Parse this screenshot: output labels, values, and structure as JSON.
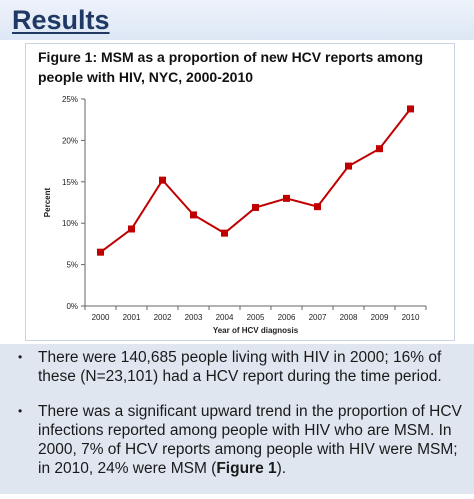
{
  "slide": {
    "title": "Results"
  },
  "figure": {
    "caption": "Figure 1: MSM as a proportion of new HCV reports among people with HIV, NYC, 2000-2010"
  },
  "bullets": [
    {
      "marker": "•",
      "text": "There were 140,685 people living with HIV in 2000; 16% of these (N=23,101) had a HCV report during the time period."
    },
    {
      "marker": "•",
      "text_before": "There was a significant upward trend in the proportion of HCV infections reported among people with HIV who are MSM.  In 2000, 7% of HCV reports among people with HIV were MSM; in 2010, 24% were MSM (",
      "text_bold": "Figure 1",
      "text_after": ")."
    }
  ],
  "chart_data": {
    "type": "line",
    "title": "",
    "xlabel": "Year of HCV diagnosis",
    "ylabel": "Percent",
    "x": [
      "2000",
      "2001",
      "2002",
      "2003",
      "2004",
      "2005",
      "2006",
      "2007",
      "2008",
      "2009",
      "2010"
    ],
    "series": [
      {
        "values": [
          6.5,
          9.3,
          15.2,
          11.0,
          8.8,
          11.9,
          13.0,
          12.0,
          16.9,
          19.0,
          23.8
        ]
      }
    ],
    "ylim": [
      0,
      25
    ],
    "yticks": [
      0,
      5,
      10,
      15,
      20,
      25
    ],
    "ytick_labels": [
      "0%",
      "5%",
      "10%",
      "15%",
      "20%",
      "25%"
    ],
    "grid": false,
    "legend": "none",
    "line_color": "#c00000",
    "marker": "square"
  }
}
